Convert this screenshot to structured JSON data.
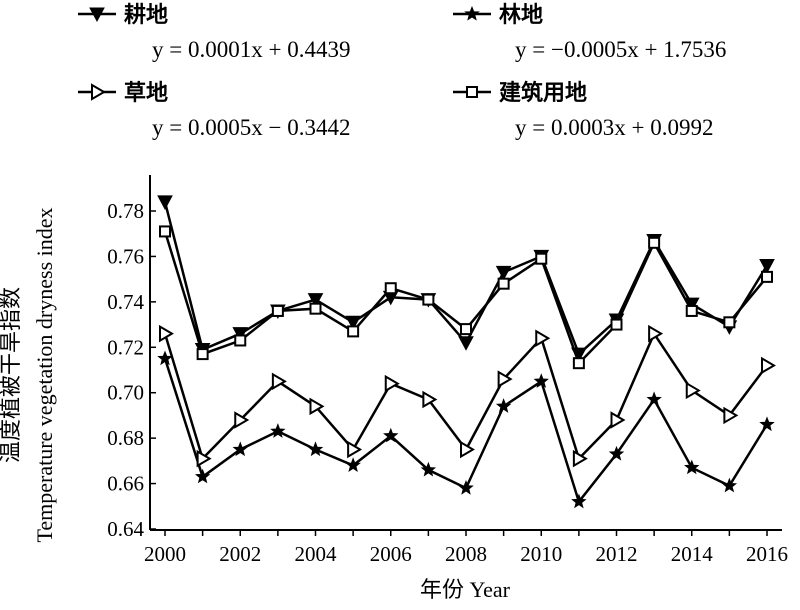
{
  "chart_data": {
    "type": "line",
    "xlabel": "年份 Year",
    "ylabel_cn": "温度植被干旱指数",
    "ylabel_en": "Temperature vegetation dryness index",
    "xlim": [
      2000,
      2016
    ],
    "ylim": [
      0.64,
      0.79
    ],
    "x_ticks": [
      2000,
      2002,
      2004,
      2006,
      2008,
      2010,
      2012,
      2014,
      2016
    ],
    "y_ticks": [
      0.64,
      0.66,
      0.68,
      0.7,
      0.72,
      0.74,
      0.76,
      0.78
    ],
    "y_tick_labels": [
      "0.64",
      "0.66",
      "0.68",
      "0.70",
      "0.72",
      "0.74",
      "0.76",
      "0.78"
    ],
    "x": [
      2000,
      2001,
      2002,
      2003,
      2004,
      2005,
      2006,
      2007,
      2008,
      2009,
      2010,
      2011,
      2012,
      2013,
      2014,
      2015,
      2016
    ],
    "grid": false,
    "legend_placement": "top",
    "line_color": "#000000",
    "series": [
      {
        "name": "耕地",
        "marker": "triangle-down-filled",
        "equation": "y = 0.0001x + 0.4439",
        "values": [
          0.784,
          0.719,
          0.726,
          0.736,
          0.741,
          0.731,
          0.742,
          0.741,
          0.722,
          0.753,
          0.76,
          0.717,
          0.732,
          0.767,
          0.739,
          0.729,
          0.756
        ]
      },
      {
        "name": "林地",
        "marker": "star",
        "equation": "y = −0.0005x + 1.7536",
        "values": [
          0.715,
          0.663,
          0.675,
          0.683,
          0.675,
          0.668,
          0.681,
          0.666,
          0.658,
          0.694,
          0.705,
          0.652,
          0.673,
          0.697,
          0.667,
          0.659,
          0.686
        ]
      },
      {
        "name": "草地",
        "marker": "triangle-right-open",
        "equation": "y = 0.0005x − 0.3442",
        "values": [
          0.726,
          0.671,
          0.688,
          0.705,
          0.694,
          0.675,
          0.704,
          0.697,
          0.675,
          0.706,
          0.724,
          0.671,
          0.688,
          0.726,
          0.701,
          0.69,
          0.712
        ]
      },
      {
        "name": "建筑用地",
        "marker": "square-open",
        "equation": "y = 0.0003x + 0.0992",
        "values": [
          0.771,
          0.717,
          0.723,
          0.736,
          0.737,
          0.727,
          0.746,
          0.741,
          0.728,
          0.748,
          0.759,
          0.713,
          0.73,
          0.766,
          0.736,
          0.731,
          0.751
        ]
      }
    ]
  }
}
